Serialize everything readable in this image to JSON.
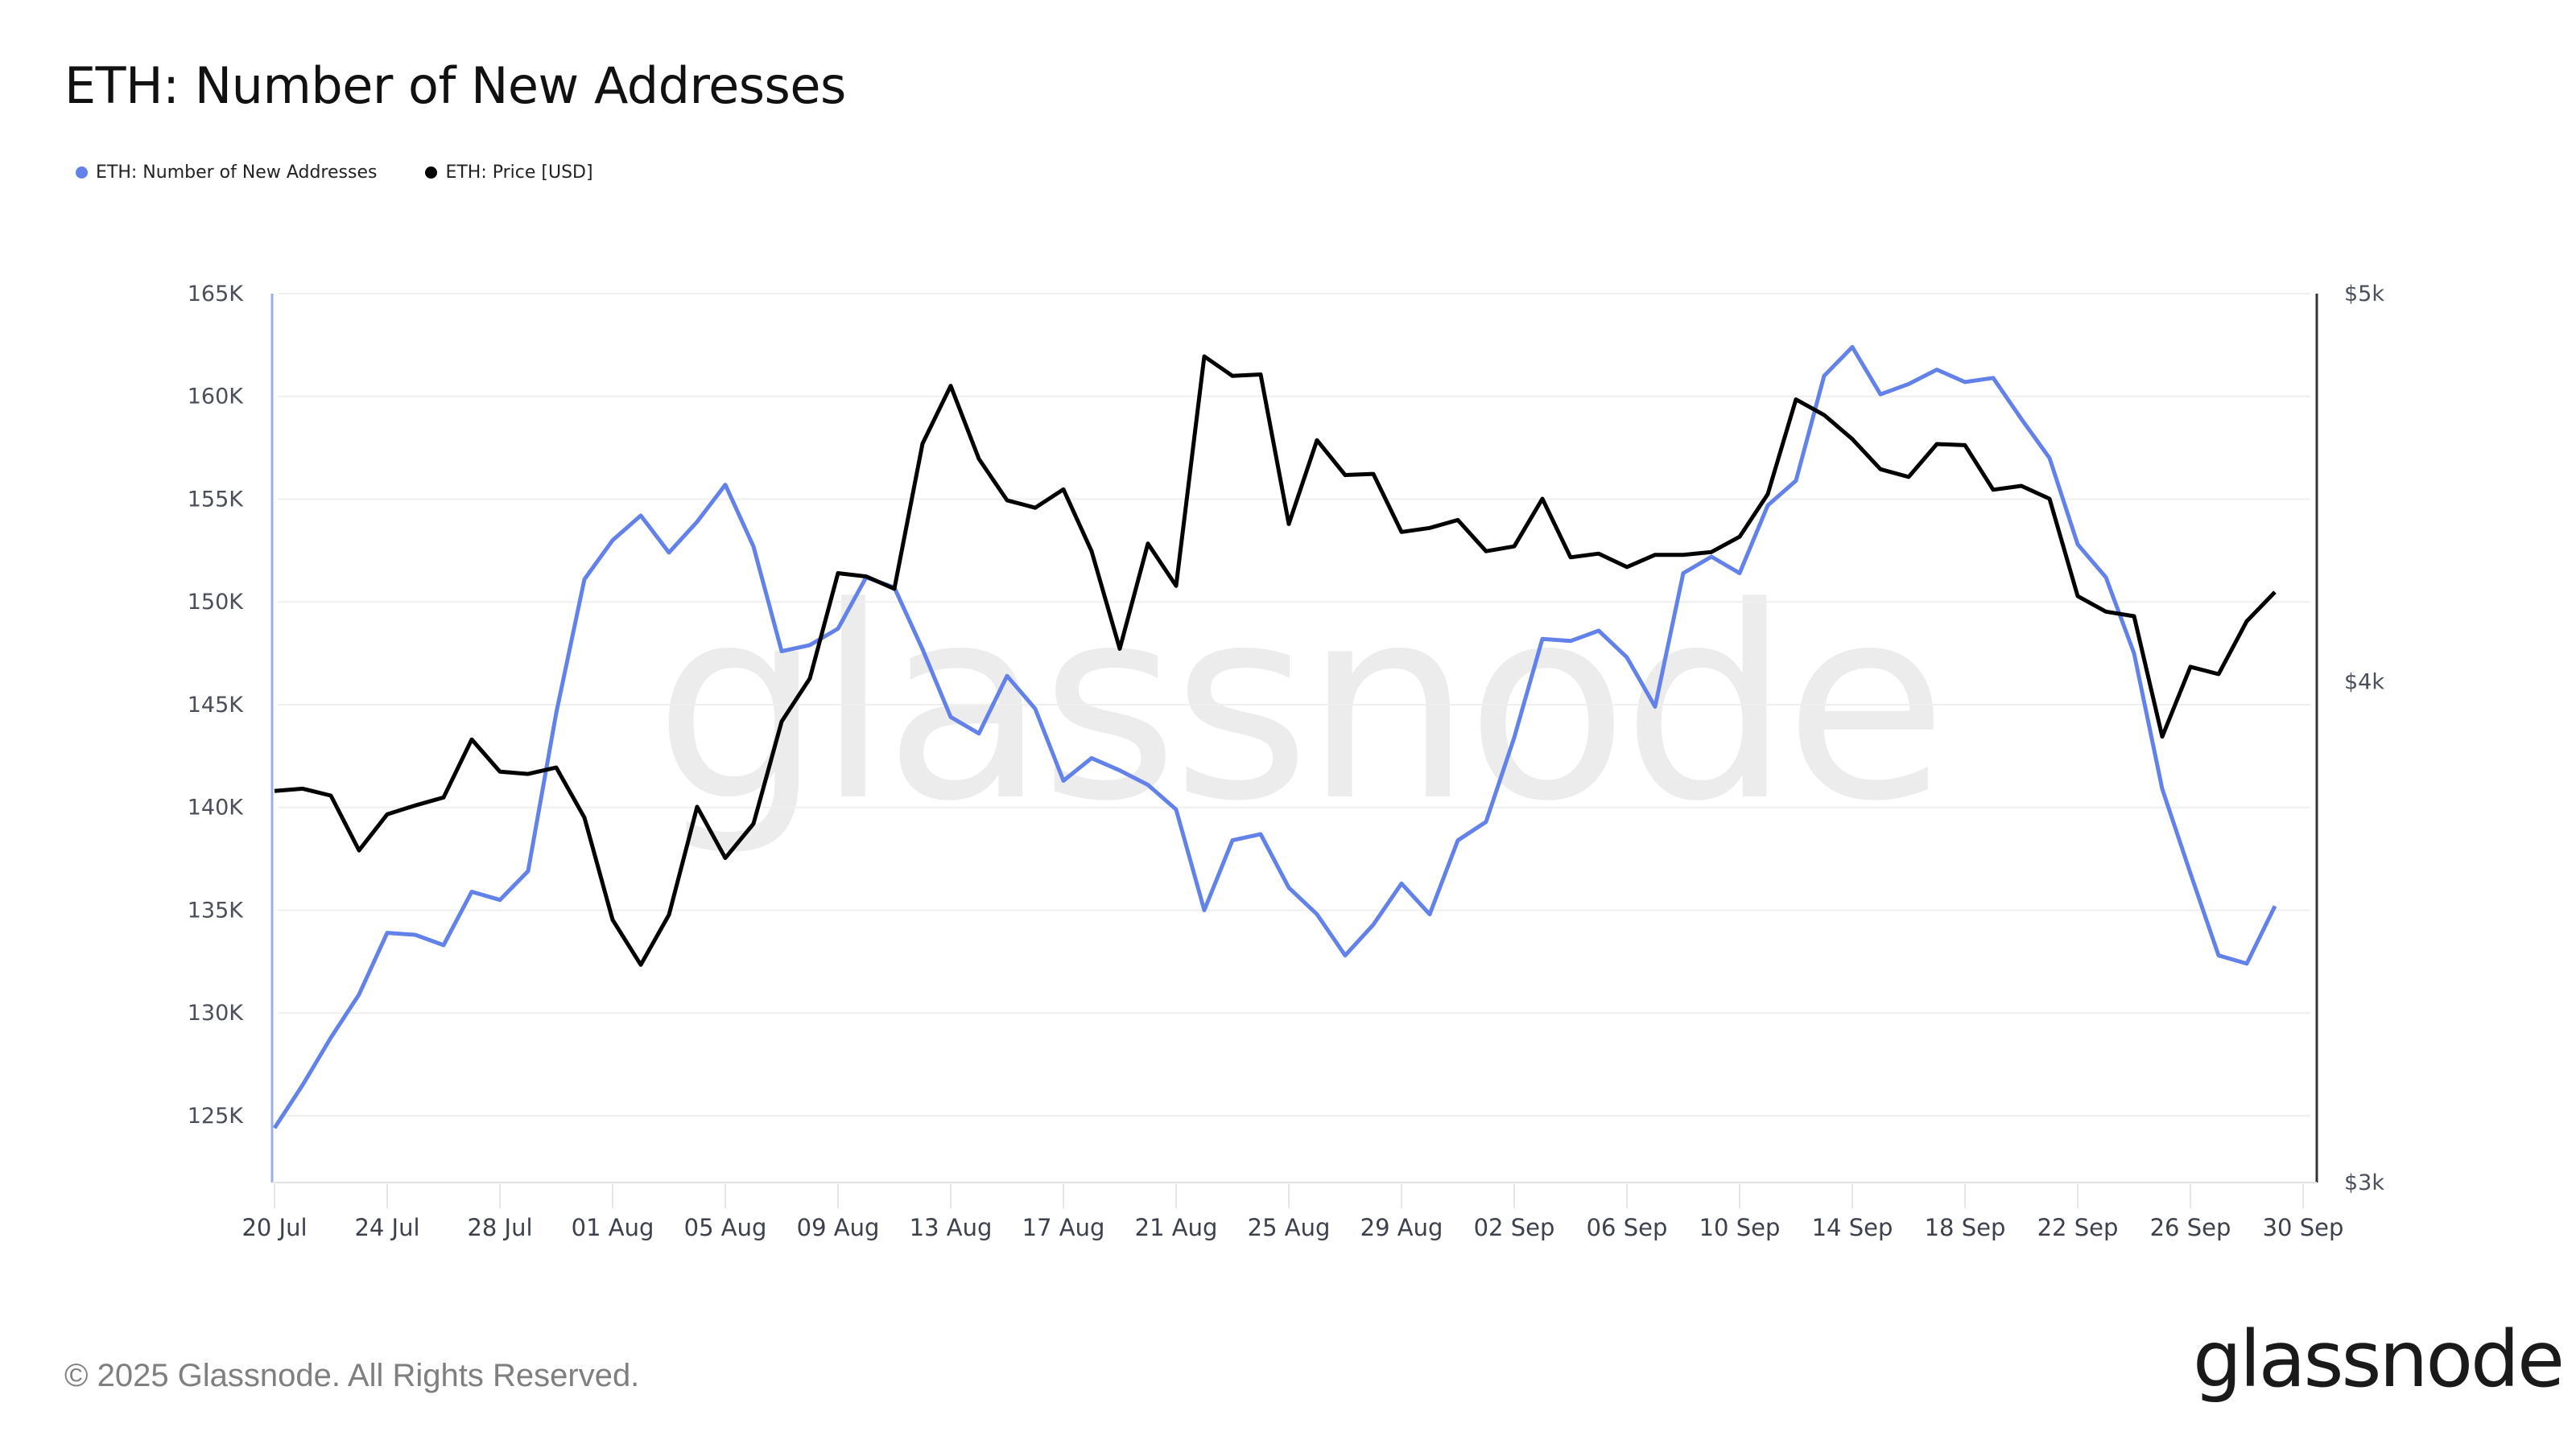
{
  "title": "ETH: Number of New Addresses",
  "legend": [
    {
      "label": "ETH: Number of New Addresses",
      "color": "#6282ea"
    },
    {
      "label": "ETH: Price [USD]",
      "color": "#000000"
    }
  ],
  "footer": {
    "copyright": "© 2025 Glassnode. All Rights Reserved.",
    "logo_text": "glassnode"
  },
  "watermark": "glassnode",
  "chart_data": {
    "type": "line",
    "title": "ETH: Number of New Addresses",
    "xlabel": "",
    "x_ticks": [
      "20 Jul",
      "24 Jul",
      "28 Jul",
      "01 Aug",
      "05 Aug",
      "09 Aug",
      "13 Aug",
      "17 Aug",
      "21 Aug",
      "25 Aug",
      "29 Aug",
      "02 Sep",
      "06 Sep",
      "10 Sep",
      "14 Sep",
      "18 Sep",
      "22 Sep",
      "26 Sep",
      "30 Sep"
    ],
    "x_start": "2025-07-20",
    "x_end": "2025-09-30",
    "left_axis": {
      "label": "ETH: Number of New Addresses",
      "ticks": [
        "125K",
        "130K",
        "135K",
        "140K",
        "145K",
        "150K",
        "155K",
        "160K",
        "165K"
      ],
      "tick_values": [
        125000,
        130000,
        135000,
        140000,
        145000,
        150000,
        155000,
        160000,
        165000
      ],
      "range": [
        121750,
        165000
      ],
      "scale": "linear"
    },
    "right_axis": {
      "label": "ETH: Price [USD]",
      "ticks": [
        "$3k",
        "$4k",
        "$5k"
      ],
      "tick_values": [
        3000,
        4000,
        5000
      ],
      "range": [
        3000,
        5000
      ],
      "scale": "log"
    },
    "grid": true,
    "legend_position": "top-left",
    "dates": [
      "2025-07-20",
      "2025-07-21",
      "2025-07-22",
      "2025-07-23",
      "2025-07-24",
      "2025-07-25",
      "2025-07-26",
      "2025-07-27",
      "2025-07-28",
      "2025-07-29",
      "2025-07-30",
      "2025-07-31",
      "2025-08-01",
      "2025-08-02",
      "2025-08-03",
      "2025-08-04",
      "2025-08-05",
      "2025-08-06",
      "2025-08-07",
      "2025-08-08",
      "2025-08-09",
      "2025-08-10",
      "2025-08-11",
      "2025-08-12",
      "2025-08-13",
      "2025-08-14",
      "2025-08-15",
      "2025-08-16",
      "2025-08-17",
      "2025-08-18",
      "2025-08-19",
      "2025-08-20",
      "2025-08-21",
      "2025-08-22",
      "2025-08-23",
      "2025-08-24",
      "2025-08-25",
      "2025-08-26",
      "2025-08-27",
      "2025-08-28",
      "2025-08-29",
      "2025-08-30",
      "2025-08-31",
      "2025-09-01",
      "2025-09-02",
      "2025-09-03",
      "2025-09-04",
      "2025-09-05",
      "2025-09-06",
      "2025-09-07",
      "2025-09-08",
      "2025-09-09",
      "2025-09-10",
      "2025-09-11",
      "2025-09-12",
      "2025-09-13",
      "2025-09-14",
      "2025-09-15",
      "2025-09-16",
      "2025-09-17",
      "2025-09-18",
      "2025-09-19",
      "2025-09-20",
      "2025-09-21",
      "2025-09-22",
      "2025-09-23",
      "2025-09-24",
      "2025-09-25",
      "2025-09-26",
      "2025-09-27",
      "2025-09-28",
      "2025-09-29"
    ],
    "series": [
      {
        "name": "ETH: Number of New Addresses",
        "axis": "left",
        "color": "#6282ea",
        "values": [
          124400,
          126500,
          128800,
          130900,
          133900,
          133800,
          133300,
          135900,
          135500,
          136900,
          144600,
          151100,
          153000,
          154200,
          152400,
          153900,
          155700,
          152700,
          147600,
          147900,
          148700,
          151200,
          150700,
          147700,
          144400,
          143600,
          146400,
          144800,
          141300,
          142400,
          141800,
          141100,
          139900,
          135000,
          138400,
          138700,
          136100,
          134800,
          132800,
          134300,
          136300,
          134800,
          138400,
          139300,
          143400,
          148200,
          148100,
          148600,
          147300,
          144900,
          151400,
          152200,
          151400,
          154700,
          155900,
          161000,
          162400,
          160100,
          160600,
          161300,
          160700,
          160900,
          158900,
          157000,
          152800,
          151200,
          147500,
          140900,
          136800,
          132800,
          132400,
          135200
        ]
      },
      {
        "name": "ETH: Price [USD]",
        "axis": "right",
        "color": "#000000",
        "values": [
          3757,
          3762,
          3747,
          3631,
          3707,
          3726,
          3743,
          3870,
          3799,
          3794,
          3808,
          3700,
          3489,
          3400,
          3499,
          3723,
          3615,
          3687,
          3910,
          4008,
          4258,
          4250,
          4220,
          4587,
          4742,
          4547,
          4440,
          4421,
          4468,
          4312,
          4077,
          4331,
          4227,
          4823,
          4769,
          4773,
          4380,
          4596,
          4505,
          4508,
          4360,
          4370,
          4390,
          4312,
          4324,
          4444,
          4297,
          4306,
          4273,
          4303,
          4303,
          4310,
          4348,
          4456,
          4705,
          4663,
          4599,
          4520,
          4500,
          4586,
          4583,
          4467,
          4477,
          4444,
          4202,
          4165,
          4154,
          3876,
          4035,
          4018,
          4142,
          4212
        ]
      }
    ]
  }
}
